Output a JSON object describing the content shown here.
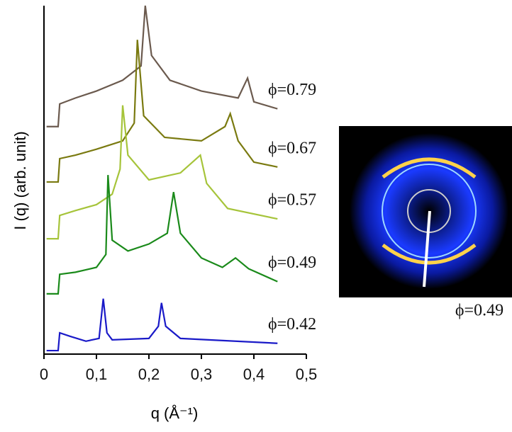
{
  "chart_data": {
    "type": "line",
    "xlabel": "q (Å⁻¹)",
    "ylabel": "I (q)  (arb. unit)",
    "xlim": [
      0,
      0.5
    ],
    "xticks": [
      0,
      {
        "value": 0.1,
        "label": "0,1"
      },
      {
        "value": 0.2,
        "label": "0,2"
      },
      {
        "value": 0.3,
        "label": "0,3"
      },
      {
        "value": 0.4,
        "label": "0,4"
      },
      {
        "value": 0.5,
        "label": "0,5"
      }
    ],
    "ylim": [
      0,
      10
    ],
    "series": [
      {
        "name": "ϕ=0.79",
        "color": "#6b5a4e",
        "x": [
          0.005,
          0.027,
          0.03,
          0.06,
          0.1,
          0.15,
          0.185,
          0.193,
          0.205,
          0.24,
          0.3,
          0.37,
          0.388,
          0.4,
          0.445
        ],
        "values": [
          6.53,
          6.53,
          7.18,
          7.35,
          7.55,
          7.86,
          8.27,
          10.0,
          8.57,
          7.86,
          7.55,
          7.35,
          7.92,
          7.24,
          7.04
        ]
      },
      {
        "name": "ϕ=0.67",
        "color": "#7a7a10",
        "x": [
          0.005,
          0.027,
          0.03,
          0.06,
          0.1,
          0.15,
          0.172,
          0.178,
          0.19,
          0.23,
          0.3,
          0.345,
          0.355,
          0.37,
          0.4,
          0.445
        ],
        "values": [
          4.94,
          4.94,
          5.61,
          5.71,
          5.88,
          6.12,
          6.63,
          9.02,
          6.84,
          6.22,
          6.12,
          6.53,
          6.9,
          6.12,
          5.51,
          5.37
        ]
      },
      {
        "name": "ϕ=0.57",
        "color": "#a6c43a",
        "x": [
          0.005,
          0.027,
          0.03,
          0.06,
          0.1,
          0.13,
          0.145,
          0.15,
          0.16,
          0.2,
          0.26,
          0.298,
          0.31,
          0.35,
          0.445
        ],
        "values": [
          3.31,
          3.31,
          3.98,
          4.12,
          4.29,
          4.59,
          5.31,
          7.14,
          5.71,
          5.0,
          5.2,
          5.71,
          4.9,
          4.18,
          3.88
        ]
      },
      {
        "name": "ϕ=0.49",
        "color": "#1a8a1a",
        "x": [
          0.005,
          0.027,
          0.03,
          0.06,
          0.1,
          0.118,
          0.122,
          0.13,
          0.16,
          0.2,
          0.235,
          0.247,
          0.26,
          0.3,
          0.34,
          0.365,
          0.39,
          0.445
        ],
        "values": [
          1.73,
          1.73,
          2.29,
          2.35,
          2.49,
          2.86,
          5.14,
          3.27,
          2.96,
          3.16,
          3.47,
          4.65,
          3.47,
          2.76,
          2.49,
          2.76,
          2.45,
          2.08
        ]
      },
      {
        "name": "ϕ=0.42",
        "color": "#1a1ac8",
        "x": [
          0.005,
          0.027,
          0.03,
          0.05,
          0.08,
          0.105,
          0.113,
          0.12,
          0.13,
          0.2,
          0.218,
          0.224,
          0.232,
          0.26,
          0.445
        ],
        "values": [
          0.1,
          0.1,
          0.61,
          0.51,
          0.37,
          0.45,
          1.59,
          0.61,
          0.41,
          0.45,
          0.8,
          1.47,
          0.8,
          0.45,
          0.31
        ]
      }
    ],
    "inset_label": "ϕ=0.49"
  }
}
